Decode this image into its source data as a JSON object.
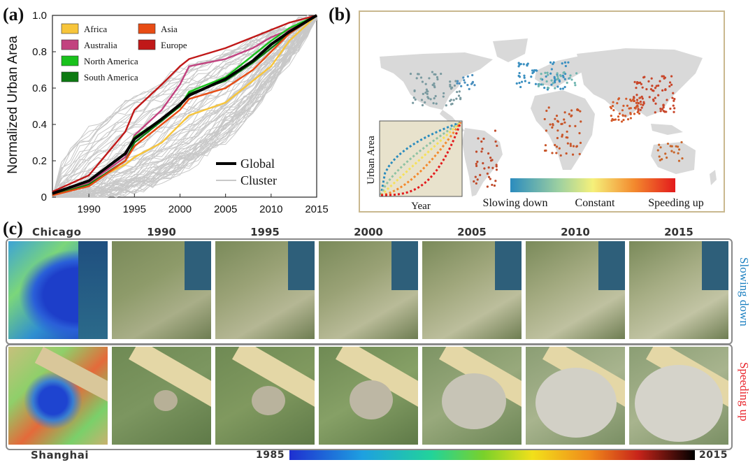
{
  "panel_labels": {
    "a": "(a)",
    "b": "(b)",
    "c": "(c)"
  },
  "colors": {
    "africa": "#f7c53b",
    "australia": "#c2427f",
    "north_america": "#19c21c",
    "south_america": "#0d7a12",
    "asia": "#e84c14",
    "europe": "#c01818",
    "global": "#000000",
    "cluster": "#c8c8c8",
    "slowing_down": "#1b7fc0",
    "speeding_up": "#e8232a",
    "map_frame": "#c9b88f"
  },
  "chart_data": {
    "type": "line",
    "ylabel": "Normalized Urban Area",
    "xlabel": "",
    "xlim": [
      1986,
      2015
    ],
    "ylim": [
      0,
      1
    ],
    "x_ticks": [
      1990,
      1995,
      2000,
      2005,
      2010,
      2015
    ],
    "y_ticks": [
      0,
      0.2,
      0.4,
      0.6,
      0.8,
      1.0
    ],
    "y_tick_labels": [
      "0",
      "0.2",
      "0.4",
      "0.6",
      "0.8",
      "1.0"
    ],
    "legend_placement": "top-left",
    "x": [
      1986,
      1990,
      1994,
      1995,
      1998,
      2000,
      2001,
      2005,
      2008,
      2010,
      2012,
      2015
    ],
    "series": [
      {
        "name": "Africa",
        "color": "#f7c53b",
        "values": [
          0.01,
          0.08,
          0.18,
          0.22,
          0.3,
          0.4,
          0.45,
          0.52,
          0.64,
          0.72,
          0.86,
          1.0
        ]
      },
      {
        "name": "Australia",
        "color": "#c2427f",
        "values": [
          0.02,
          0.08,
          0.22,
          0.34,
          0.48,
          0.62,
          0.72,
          0.76,
          0.82,
          0.88,
          0.92,
          1.0
        ]
      },
      {
        "name": "North America",
        "color": "#19c21c",
        "values": [
          0.02,
          0.09,
          0.24,
          0.33,
          0.43,
          0.5,
          0.58,
          0.66,
          0.78,
          0.86,
          0.93,
          1.0
        ]
      },
      {
        "name": "South America",
        "color": "#0d7a12",
        "values": [
          0.01,
          0.07,
          0.2,
          0.3,
          0.42,
          0.5,
          0.57,
          0.64,
          0.74,
          0.82,
          0.9,
          1.0
        ]
      },
      {
        "name": "Asia",
        "color": "#e84c14",
        "values": [
          0.01,
          0.06,
          0.2,
          0.28,
          0.4,
          0.48,
          0.54,
          0.6,
          0.7,
          0.8,
          0.9,
          1.0
        ]
      },
      {
        "name": "Europe",
        "color": "#c01818",
        "values": [
          0.03,
          0.12,
          0.36,
          0.48,
          0.62,
          0.72,
          0.76,
          0.82,
          0.88,
          0.92,
          0.96,
          1.0
        ]
      },
      {
        "name": "Global",
        "color": "#000000",
        "values": [
          0.02,
          0.09,
          0.24,
          0.32,
          0.43,
          0.51,
          0.56,
          0.65,
          0.75,
          0.84,
          0.91,
          1.0
        ]
      }
    ],
    "legend_main": [
      "Africa",
      "Australia",
      "North America",
      "South America",
      "Asia",
      "Europe"
    ],
    "legend_sub": [
      "Global",
      "Cluster"
    ]
  },
  "map": {
    "inset_ylabel": "Urban Area",
    "inset_xlabel": "Year",
    "colorbar_labels": [
      "Slowing down",
      "Constant",
      "Speeding up"
    ]
  },
  "panel_c": {
    "top_city": "Chicago",
    "bottom_city": "Shanghai",
    "years": [
      "1990",
      "1995",
      "2000",
      "2005",
      "2010",
      "2015"
    ],
    "top_side_label": "Slowing down",
    "bottom_side_label": "Speeding up",
    "colorbar_start": "1985",
    "colorbar_end": "2015"
  }
}
